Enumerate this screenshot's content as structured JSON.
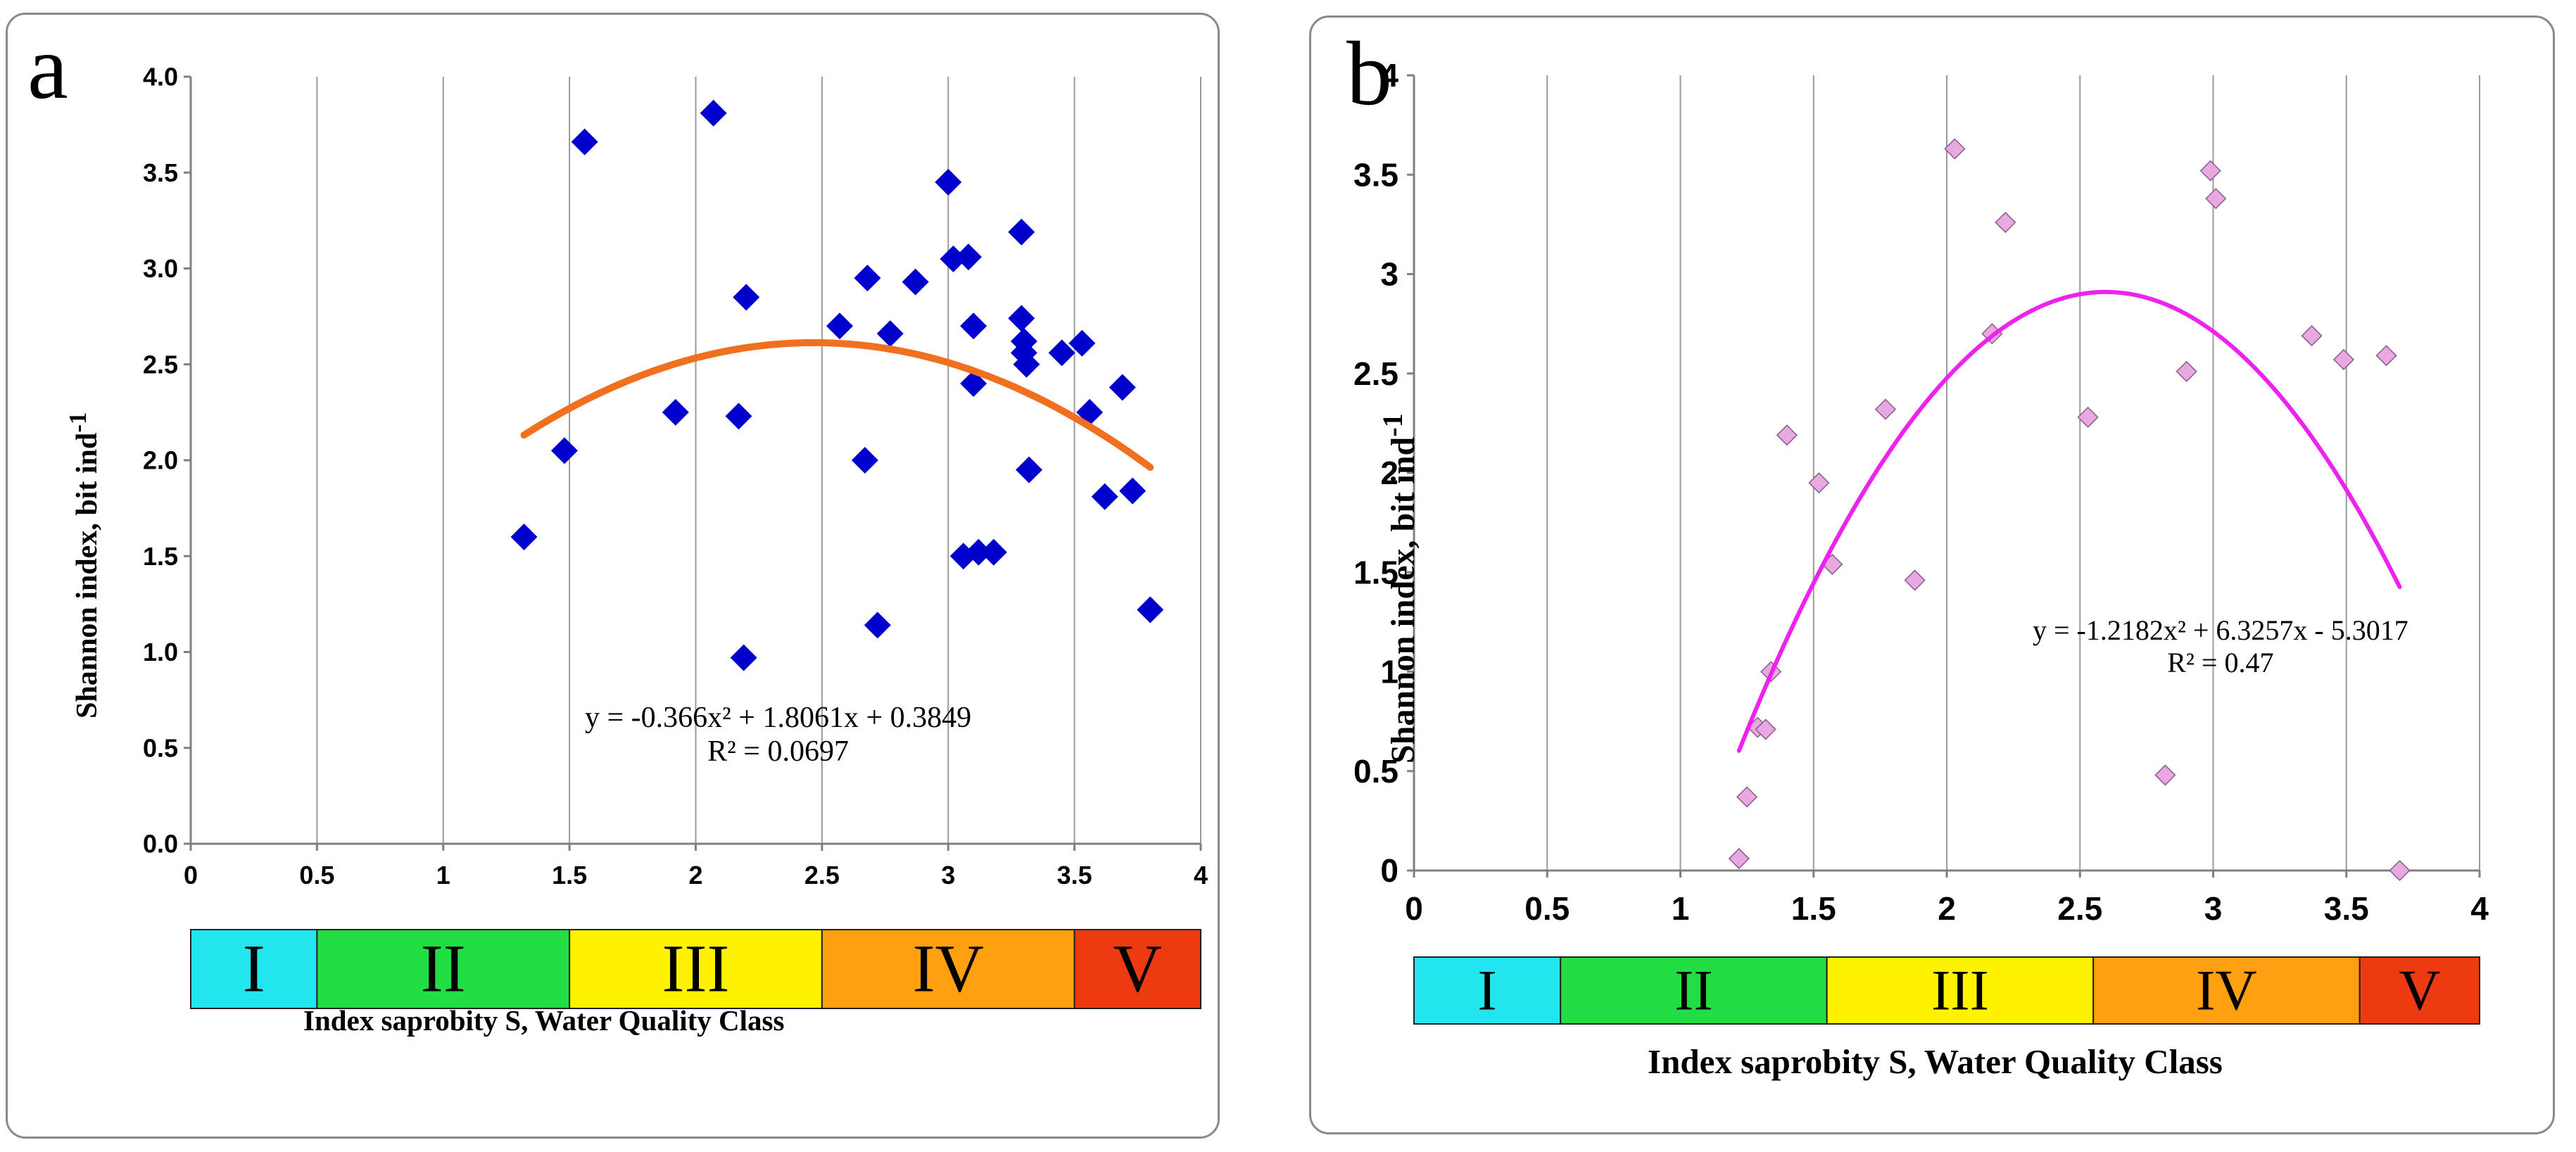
{
  "chart_data": [
    {
      "type": "scatter",
      "panel": "a",
      "panel_label": "a",
      "ylabel": "Shannon index, bit ind",
      "ylabel_sup": "-1",
      "xlabel": "Index saprobity S, Water Quality Class",
      "xlim": [
        0,
        4
      ],
      "ylim": [
        0.0,
        4.0
      ],
      "x_ticks": [
        "0",
        "0.5",
        "1",
        "1.5",
        "2",
        "2.5",
        "3",
        "3.5",
        "4"
      ],
      "y_ticks": [
        "0.0",
        "0.5",
        "1.0",
        "1.5",
        "2.0",
        "2.5",
        "3.0",
        "3.5",
        "4.0"
      ],
      "marker_color": "#0000CC",
      "trend_color": "#F07020",
      "series": [
        {
          "name": "observations",
          "x": [
            1.32,
            1.48,
            1.56,
            1.92,
            2.07,
            2.17,
            2.2,
            2.19,
            2.57,
            2.67,
            2.68,
            2.72,
            2.77,
            2.87,
            3.0,
            3.02,
            3.06,
            3.08,
            3.1,
            3.1,
            3.12,
            3.18,
            3.29,
            3.29,
            3.3,
            3.3,
            3.31,
            3.32,
            3.45,
            3.53,
            3.56,
            3.62,
            3.69,
            3.73,
            3.8
          ],
          "y": [
            1.6,
            2.05,
            3.66,
            2.25,
            3.81,
            2.23,
            2.85,
            0.97,
            2.7,
            2.0,
            2.95,
            1.14,
            2.66,
            2.93,
            3.45,
            3.05,
            1.5,
            3.06,
            2.7,
            2.4,
            1.52,
            1.52,
            3.19,
            2.74,
            2.62,
            2.56,
            2.5,
            1.95,
            2.56,
            2.61,
            2.25,
            1.81,
            2.38,
            1.84,
            1.22
          ]
        }
      ],
      "trendline": {
        "equation": "y = -0.366x² + 1.8061x + 0.3849",
        "r2": "R² = 0.0697",
        "a": -0.366,
        "b": 1.8061,
        "c": 0.3849,
        "x_range": [
          1.32,
          3.8
        ]
      },
      "classes": [
        {
          "label": "I",
          "from": 0,
          "to": 0.5,
          "color": "#22E5EE"
        },
        {
          "label": "II",
          "from": 0.5,
          "to": 1.5,
          "color": "#22DD44"
        },
        {
          "label": "III",
          "from": 1.5,
          "to": 2.5,
          "color": "#FFF200"
        },
        {
          "label": "IV",
          "from": 2.5,
          "to": 3.5,
          "color": "#FFA010"
        },
        {
          "label": "V",
          "from": 3.5,
          "to": 4.0,
          "color": "#EE3A10"
        }
      ]
    },
    {
      "type": "scatter",
      "panel": "b",
      "panel_label": "b",
      "ylabel": "Shannon index, bit ind",
      "ylabel_sup": "-1",
      "xlabel": "Index saprobity S, Water Quality Class",
      "xlim": [
        0,
        4
      ],
      "ylim": [
        0,
        4
      ],
      "x_ticks": [
        "0",
        "0.5",
        "1",
        "1.5",
        "2",
        "2.5",
        "3",
        "3.5",
        "4"
      ],
      "y_ticks": [
        "0",
        "0.5",
        "1",
        "1.5",
        "2",
        "2.5",
        "3",
        "3.5",
        "4"
      ],
      "marker_color": "#E8A8E0",
      "trend_color": "#EE22EE",
      "series": [
        {
          "name": "observations",
          "x": [
            1.22,
            1.25,
            1.29,
            1.32,
            1.34,
            1.4,
            1.52,
            1.57,
            1.77,
            1.88,
            2.03,
            2.17,
            2.22,
            2.53,
            2.82,
            2.9,
            2.99,
            3.01,
            3.37,
            3.49,
            3.65,
            3.7
          ],
          "y": [
            0.06,
            0.37,
            0.72,
            0.71,
            1.0,
            2.19,
            1.95,
            1.54,
            2.32,
            1.46,
            3.63,
            2.7,
            3.26,
            2.28,
            0.48,
            2.51,
            3.52,
            3.38,
            2.69,
            2.57,
            2.59,
            0.0
          ]
        }
      ],
      "trendline": {
        "equation": "y = -1.2182x² + 6.3257x - 5.3017",
        "r2": "R² = 0.47",
        "a": -1.2182,
        "b": 6.3257,
        "c": -5.3017,
        "x_range": [
          1.22,
          3.7
        ]
      },
      "classes": [
        {
          "label": "I",
          "from": 0,
          "to": 0.55,
          "color": "#22E5EE"
        },
        {
          "label": "II",
          "from": 0.55,
          "to": 1.55,
          "color": "#22DD44"
        },
        {
          "label": "III",
          "from": 1.55,
          "to": 2.55,
          "color": "#FFF200"
        },
        {
          "label": "IV",
          "from": 2.55,
          "to": 3.55,
          "color": "#FFA010"
        },
        {
          "label": "V",
          "from": 3.55,
          "to": 4.0,
          "color": "#EE3A10"
        }
      ]
    }
  ]
}
